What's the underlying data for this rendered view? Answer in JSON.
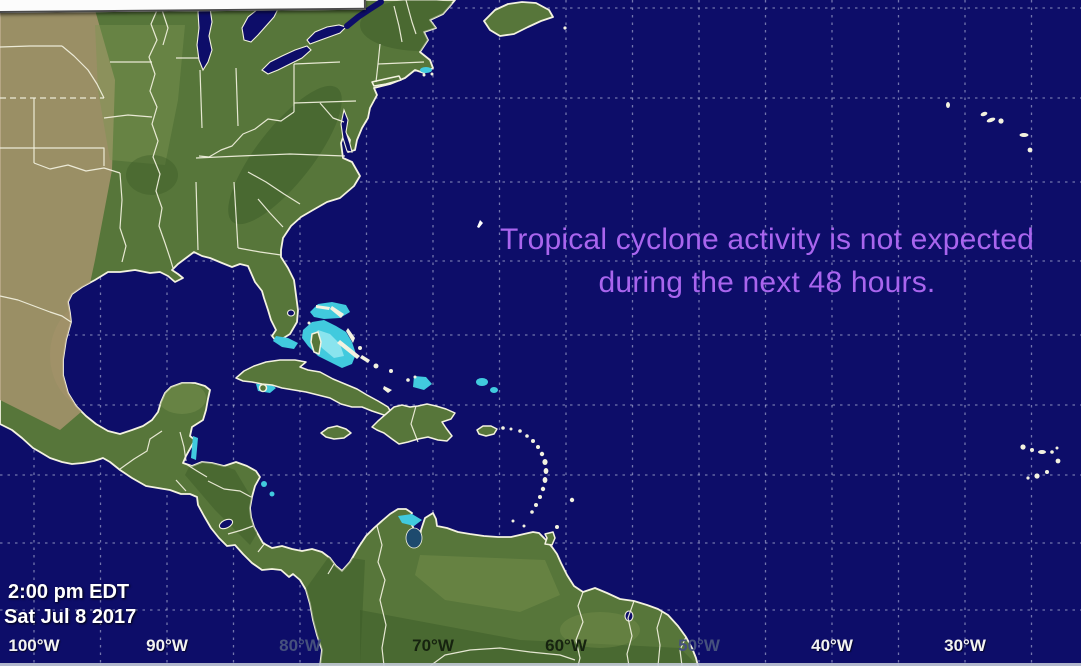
{
  "map": {
    "annotation": {
      "line1": "Tropical cyclone activity is not expected",
      "line2": "during the next 48 hours."
    },
    "timestamp": {
      "time": "2:00 pm EDT",
      "date": "Sat Jul 8 2017"
    },
    "longitude_labels": {
      "items": [
        {
          "label": "100°W"
        },
        {
          "label": "90°W"
        },
        {
          "label": "80°W"
        },
        {
          "label": "70°W"
        },
        {
          "label": "60°W"
        },
        {
          "label": "50°W"
        },
        {
          "label": "40°W"
        },
        {
          "label": "30°W"
        }
      ]
    },
    "colors": {
      "ocean": "#0d0d69",
      "land": "#57763a",
      "coastline": "#f3f2e0",
      "shallow_water": "#41cade",
      "annotation_text": "#a965ee",
      "grid": "rgba(198,204,230,0.55)"
    }
  }
}
